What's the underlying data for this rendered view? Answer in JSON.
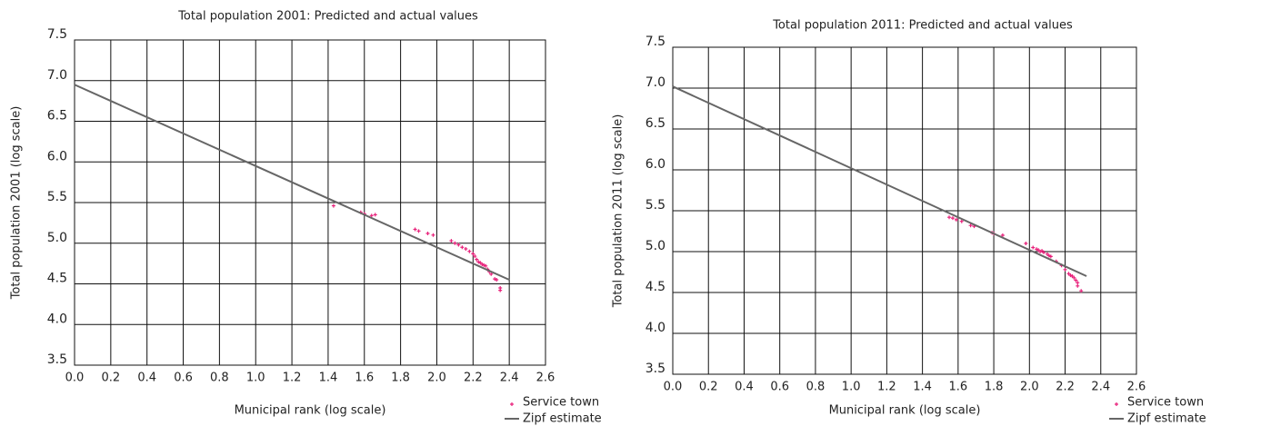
{
  "chart_data": [
    {
      "type": "scatter",
      "title": "Total population 2001: Predicted and actual values",
      "x_label": "Municipal rank (log scale)",
      "y_label": "Total population 2001 (log scale)",
      "xlim": [
        0,
        2.6
      ],
      "ylim": [
        3.5,
        7.5
      ],
      "xticks": [
        {
          "value": 0,
          "label": "0.0"
        },
        0.2,
        0.4,
        0.6,
        0.8,
        {
          "value": 1,
          "label": "1.0"
        },
        1.2,
        1.4,
        1.6,
        1.8,
        {
          "value": 2,
          "label": "2.0"
        },
        2.2,
        2.4,
        2.6
      ],
      "yticks": [
        3.5,
        {
          "value": 4,
          "label": "4.0"
        },
        4.5,
        {
          "value": 5,
          "label": "5.0"
        },
        5.5,
        {
          "value": 6,
          "label": "6.0"
        },
        6.5,
        {
          "value": 7,
          "label": "7.0"
        },
        7.5
      ],
      "grid": true,
      "legend": "bottom-right",
      "series": [
        {
          "name": "Service town",
          "mode": "markers",
          "color": "#e8207a",
          "x": [
            1.43,
            1.58,
            1.6,
            1.64,
            1.66,
            1.88,
            1.9,
            1.95,
            1.98,
            2.08,
            2.1,
            2.12,
            2.14,
            2.16,
            2.18,
            2.2,
            2.21,
            2.22,
            2.23,
            2.24,
            2.25,
            2.26,
            2.27,
            2.28,
            2.29,
            2.3,
            2.32,
            2.33,
            2.35,
            2.35
          ],
          "values": [
            5.46,
            5.38,
            5.36,
            5.34,
            5.35,
            5.17,
            5.15,
            5.12,
            5.1,
            5.03,
            5.0,
            4.98,
            4.95,
            4.93,
            4.9,
            4.87,
            4.84,
            4.8,
            4.77,
            4.76,
            4.74,
            4.73,
            4.72,
            4.68,
            4.65,
            4.62,
            4.56,
            4.55,
            4.45,
            4.42
          ]
        },
        {
          "name": "Zipf estimate",
          "mode": "line",
          "color": "#666666",
          "x": [
            0,
            2.4
          ],
          "values": [
            6.95,
            4.55
          ]
        }
      ]
    },
    {
      "type": "scatter",
      "title": "Total population 2011: Predicted and actual values",
      "x_label": "Municipal rank (log scale)",
      "y_label": "Total population 2011 (log scale)",
      "xlim": [
        0,
        2.6
      ],
      "ylim": [
        3.5,
        7.5
      ],
      "xticks": [
        {
          "value": 0,
          "label": "0.0"
        },
        0.2,
        0.4,
        0.6,
        0.8,
        {
          "value": 1,
          "label": "1.0"
        },
        1.2,
        1.4,
        1.6,
        1.8,
        {
          "value": 2,
          "label": "2.0"
        },
        2.2,
        2.4,
        2.6
      ],
      "yticks": [
        3.5,
        {
          "value": 4,
          "label": "4.0"
        },
        4.5,
        {
          "value": 5,
          "label": "5.0"
        },
        5.5,
        {
          "value": 6,
          "label": "6.0"
        },
        6.5,
        {
          "value": 7,
          "label": "7.0"
        },
        7.5
      ],
      "grid": true,
      "legend": "bottom-right",
      "series": [
        {
          "name": "Service town",
          "mode": "markers",
          "color": "#e8207a",
          "x": [
            1.55,
            1.57,
            1.59,
            1.62,
            1.67,
            1.69,
            1.79,
            1.8,
            1.85,
            1.98,
            2.02,
            2.04,
            2.05,
            2.06,
            2.07,
            2.08,
            2.1,
            2.11,
            2.12,
            2.15,
            2.18,
            2.2,
            2.22,
            2.23,
            2.24,
            2.25,
            2.26,
            2.27,
            2.27,
            2.29
          ],
          "values": [
            5.42,
            5.41,
            5.39,
            5.37,
            5.32,
            5.31,
            5.23,
            5.22,
            5.2,
            5.1,
            5.05,
            5.03,
            5.02,
            5.0,
            5.01,
            4.99,
            4.97,
            4.95,
            4.94,
            4.88,
            4.83,
            4.78,
            4.73,
            4.71,
            4.7,
            4.68,
            4.65,
            4.62,
            4.58,
            4.52
          ]
        },
        {
          "name": "Zipf estimate",
          "mode": "line",
          "color": "#666666",
          "x": [
            0,
            2.32
          ],
          "values": [
            7.02,
            4.7
          ]
        }
      ]
    }
  ]
}
